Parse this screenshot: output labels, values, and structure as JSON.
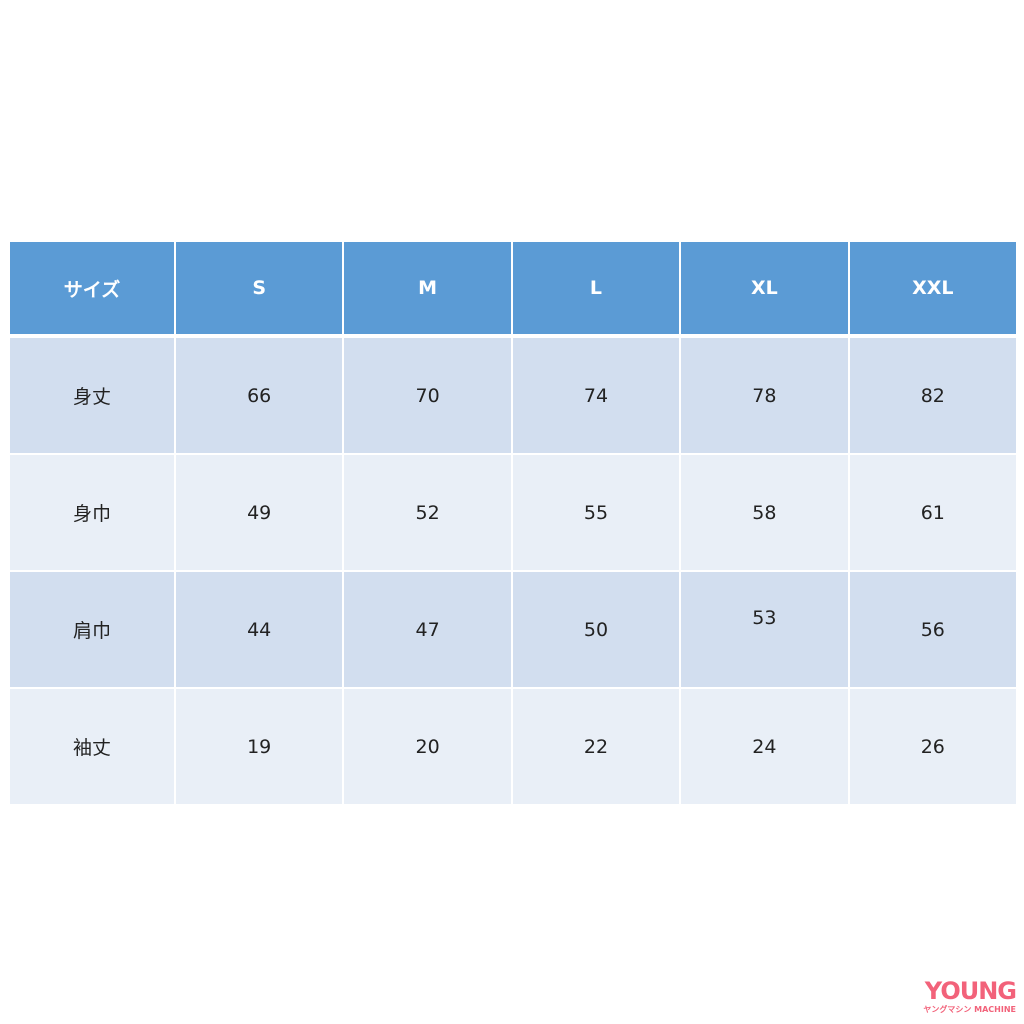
{
  "table": {
    "headers": [
      "サイズ",
      "S",
      "M",
      "L",
      "XL",
      "XXL"
    ],
    "rows": [
      {
        "label": "身丈",
        "values": [
          "66",
          "70",
          "74",
          "78",
          "82"
        ]
      },
      {
        "label": "身巾",
        "values": [
          "49",
          "52",
          "55",
          "58",
          "61"
        ]
      },
      {
        "label": "肩巾",
        "values": [
          "44",
          "47",
          "50",
          "53",
          "56"
        ]
      },
      {
        "label": "袖丈",
        "values": [
          "19",
          "20",
          "22",
          "24",
          "26"
        ]
      }
    ]
  },
  "logo": {
    "main": "YOUNG",
    "sub_kana": "ヤングマシン",
    "sub": "MACHINE"
  },
  "colors": {
    "header": "#5b9bd5",
    "row_dark": "#d2deef",
    "row_light": "#e9eff7",
    "logo": "#f2627a"
  }
}
